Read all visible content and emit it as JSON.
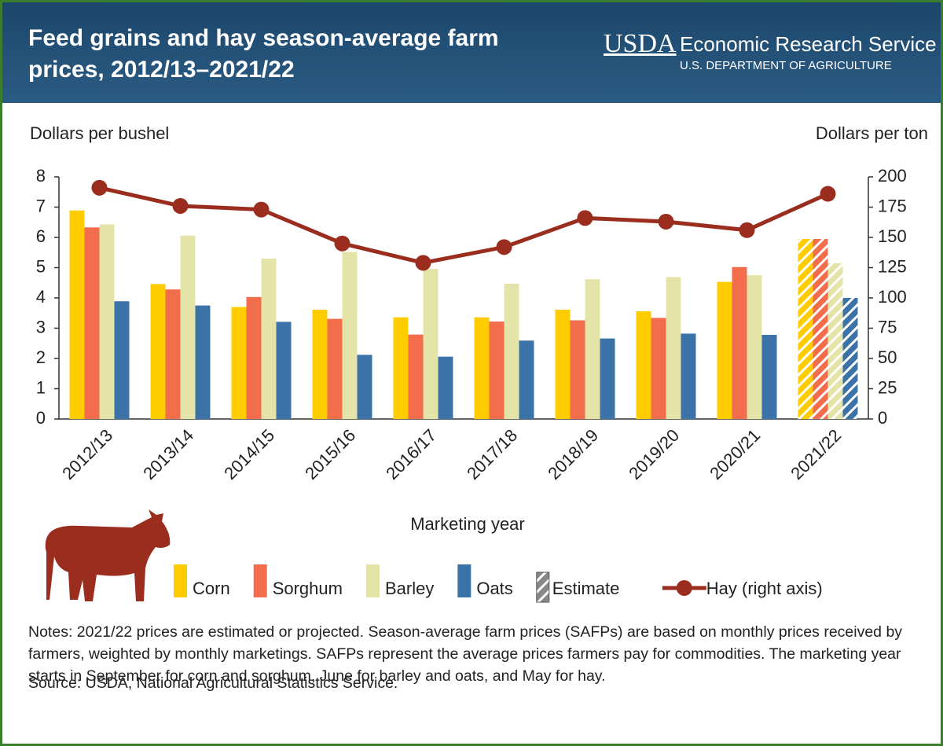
{
  "header": {
    "logo": "USDA",
    "agency": "Economic Research Service",
    "department": "U.S. DEPARTMENT OF AGRICULTURE"
  },
  "chart_data": {
    "type": "bar",
    "title": "Feed grains and hay season-average farm prices, 2012/13–2021/22",
    "ylabel": "Dollars per bushel",
    "y2label": "Dollars per ton",
    "xlabel": "Marketing year",
    "categories": [
      "2012/13",
      "2013/14",
      "2014/15",
      "2015/16",
      "2016/17",
      "2017/18",
      "2018/19",
      "2019/20",
      "2020/21",
      "2021/22"
    ],
    "series": [
      {
        "name": "Corn",
        "color": "#ffcc00",
        "values": [
          6.89,
          4.46,
          3.7,
          3.61,
          3.36,
          3.36,
          3.61,
          3.56,
          4.53,
          5.95
        ]
      },
      {
        "name": "Sorghum",
        "color": "#f26d4b",
        "values": [
          6.33,
          4.28,
          4.03,
          3.31,
          2.79,
          3.22,
          3.26,
          3.34,
          5.02,
          5.95
        ]
      },
      {
        "name": "Barley",
        "color": "#e5e4a8",
        "values": [
          6.43,
          6.06,
          5.3,
          5.52,
          4.96,
          4.47,
          4.62,
          4.69,
          4.75,
          5.15
        ]
      },
      {
        "name": "Oats",
        "color": "#3b72a8",
        "values": [
          3.89,
          3.75,
          3.21,
          2.12,
          2.06,
          2.59,
          2.66,
          2.82,
          2.78,
          4.0
        ]
      },
      {
        "name": "Hay (right axis)",
        "color": "#9b2d1f",
        "type": "line",
        "axis": "y2",
        "values": [
          191,
          176,
          173,
          145,
          129,
          142,
          166,
          163,
          156,
          186
        ]
      }
    ],
    "estimate": {
      "label": "Estimate",
      "category": "2021/22"
    },
    "ylim": [
      0,
      8
    ],
    "yticks": [
      0,
      1,
      2,
      3,
      4,
      5,
      6,
      7,
      8
    ],
    "y2lim": [
      0,
      200
    ],
    "y2ticks": [
      0,
      25,
      50,
      75,
      100,
      125,
      150,
      175,
      200
    ]
  },
  "notes": "Notes: 2021/22 prices are estimated or projected. Season-average farm prices (SAFPs) are based on monthly prices received by farmers, weighted by monthly marketings. SAFPs represent the average prices farmers pay for commodities. The marketing year starts in September for corn and sorghum, June for barley and oats, and May for hay.",
  "source": "Source: USDA, National Agricultural Statistics Service."
}
